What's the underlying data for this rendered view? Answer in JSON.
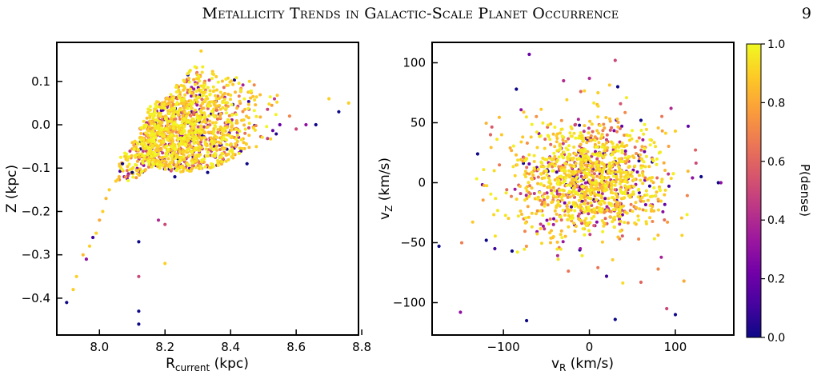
{
  "header": {
    "running_title": "Metallicity Trends in Galactic-Scale Planet Occurrence",
    "page_number": "9"
  },
  "colormap": [
    "#0d0887",
    "#46039f",
    "#7201a8",
    "#9c179e",
    "#bd3786",
    "#d8576b",
    "#ed7953",
    "#fb9f3a",
    "#fdca26",
    "#f0f921"
  ],
  "colorbar": {
    "label": "P(dense)",
    "ticks": [
      "0.0",
      "0.2",
      "0.4",
      "0.6",
      "0.8",
      "1.0"
    ],
    "range": [
      0,
      1
    ]
  },
  "chart_data": [
    {
      "type": "scatter",
      "xlabel_main": "R",
      "xlabel_sub": "current",
      "xlabel_unit": " (kpc)",
      "ylabel": "Z (kpc)",
      "xlim": [
        7.87,
        8.79
      ],
      "ylim": [
        -0.485,
        0.19
      ],
      "xticks": [
        "8.0",
        "8.2",
        "8.4",
        "8.6",
        "8.8"
      ],
      "xtick_values": [
        8.0,
        8.2,
        8.4,
        8.6,
        8.8
      ],
      "yticks": [
        "0.1",
        "0.0",
        "−0.1",
        "−0.2",
        "−0.3",
        "−0.4"
      ],
      "ytick_values": [
        0.1,
        0.0,
        -0.1,
        -0.2,
        -0.3,
        -0.4
      ],
      "points": [
        [
          7.9,
          -0.41,
          0.0
        ],
        [
          7.92,
          -0.38,
          0.9
        ],
        [
          7.93,
          -0.35,
          0.9
        ],
        [
          7.95,
          -0.3,
          0.85
        ],
        [
          7.96,
          -0.31,
          0.3
        ],
        [
          7.97,
          -0.28,
          0.9
        ],
        [
          7.98,
          -0.26,
          0.1
        ],
        [
          7.99,
          -0.25,
          0.9
        ],
        [
          8.0,
          -0.22,
          0.8
        ],
        [
          8.01,
          -0.2,
          0.9
        ],
        [
          8.02,
          -0.17,
          0.85
        ],
        [
          8.03,
          -0.15,
          0.9
        ],
        [
          8.05,
          -0.13,
          0.9
        ],
        [
          8.06,
          -0.12,
          0.85
        ],
        [
          8.07,
          -0.09,
          0.0
        ],
        [
          8.1,
          -0.11,
          0.0
        ],
        [
          8.12,
          -0.27,
          0.0
        ],
        [
          8.12,
          -0.35,
          0.5
        ],
        [
          8.12,
          -0.43,
          0.0
        ],
        [
          8.12,
          -0.46,
          0.0
        ],
        [
          8.18,
          -0.22,
          0.4
        ],
        [
          8.2,
          -0.23,
          0.5
        ],
        [
          8.2,
          -0.32,
          0.9
        ],
        [
          8.23,
          -0.12,
          0.0
        ],
        [
          8.33,
          -0.11,
          0.0
        ],
        [
          8.45,
          -0.09,
          0.0
        ],
        [
          8.55,
          0.0,
          0.2
        ],
        [
          8.58,
          0.02,
          0.7
        ],
        [
          8.6,
          -0.01,
          0.5
        ],
        [
          8.63,
          0.0,
          0.3
        ],
        [
          8.66,
          0.0,
          0.0
        ],
        [
          8.7,
          0.06,
          0.9
        ],
        [
          8.73,
          0.03,
          0.0
        ],
        [
          8.76,
          0.05,
          0.9
        ],
        [
          8.31,
          0.17,
          0.9
        ]
      ],
      "cloud": {
        "n": 1500,
        "polygon": [
          [
            8.05,
            -0.14
          ],
          [
            8.06,
            -0.08
          ],
          [
            8.1,
            -0.04
          ],
          [
            8.13,
            0.0
          ],
          [
            8.15,
            0.04
          ],
          [
            8.2,
            0.07
          ],
          [
            8.25,
            0.1
          ],
          [
            8.3,
            0.15
          ],
          [
            8.33,
            0.13
          ],
          [
            8.38,
            0.11
          ],
          [
            8.45,
            0.12
          ],
          [
            8.5,
            0.11
          ],
          [
            8.55,
            0.06
          ],
          [
            8.6,
            0.03
          ],
          [
            8.63,
            0.0
          ],
          [
            8.55,
            -0.03
          ],
          [
            8.45,
            -0.06
          ],
          [
            8.35,
            -0.1
          ],
          [
            8.25,
            -0.11
          ],
          [
            8.15,
            -0.1
          ],
          [
            8.1,
            -0.13
          ]
        ],
        "center": [
          8.22,
          -0.03
        ],
        "spread": [
          0.13,
          0.09
        ]
      }
    },
    {
      "type": "scatter",
      "xlabel_main": "v",
      "xlabel_sub": "R",
      "xlabel_unit": " (km/s)",
      "ylabel_main": "v",
      "ylabel_sub": "Z",
      "ylabel_unit": " (km/s)",
      "xlim": [
        -183,
        168
      ],
      "ylim": [
        -127,
        117
      ],
      "xticks": [
        "−100",
        "0",
        "100"
      ],
      "xtick_values": [
        -100,
        0,
        100
      ],
      "yticks": [
        "100",
        "50",
        "0",
        "−50",
        "−100"
      ],
      "ytick_values": [
        100,
        50,
        0,
        -50,
        -100
      ],
      "points": [
        [
          -175,
          -53,
          0.0
        ],
        [
          -150,
          -108,
          0.3
        ],
        [
          -130,
          24,
          0.0
        ],
        [
          -120,
          -48,
          0.0
        ],
        [
          -110,
          -55,
          0.1
        ],
        [
          -90,
          -57,
          0.0
        ],
        [
          -85,
          78,
          0.0
        ],
        [
          -73,
          -115,
          0.0
        ],
        [
          -70,
          107,
          0.2
        ],
        [
          -30,
          85,
          0.4
        ],
        [
          -10,
          76,
          0.6
        ],
        [
          0,
          87,
          0.4
        ],
        [
          10,
          75,
          0.9
        ],
        [
          20,
          -78,
          0.1
        ],
        [
          30,
          102,
          0.5
        ],
        [
          33,
          80,
          0.0
        ],
        [
          30,
          -114,
          0.0
        ],
        [
          60,
          -83,
          0.6
        ],
        [
          60,
          52,
          0.0
        ],
        [
          80,
          -72,
          0.7
        ],
        [
          90,
          -105,
          0.5
        ],
        [
          100,
          -110,
          0.0
        ],
        [
          100,
          43,
          0.9
        ],
        [
          110,
          -82,
          0.8
        ],
        [
          120,
          4,
          0.3
        ],
        [
          130,
          5,
          0.0
        ],
        [
          150,
          0,
          0.0
        ],
        [
          153,
          0,
          0.3
        ],
        [
          95,
          62,
          0.4
        ],
        [
          -115,
          40,
          0.6
        ]
      ],
      "cloud": {
        "n": 1300,
        "center": [
          0,
          3
        ],
        "spread": [
          42,
          24
        ]
      }
    }
  ]
}
